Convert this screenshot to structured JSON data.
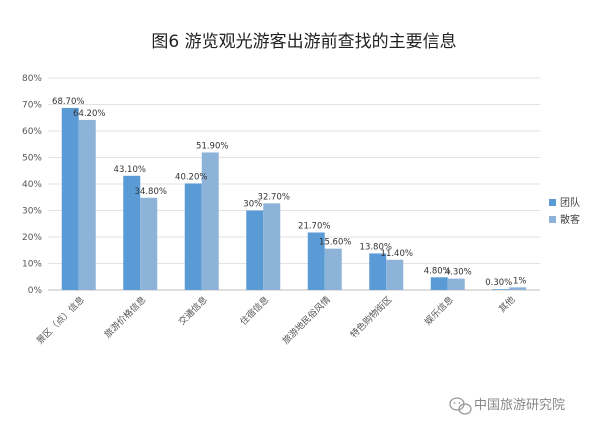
{
  "chart_data": {
    "type": "bar",
    "title": "图6 游览观光游客出游前查找的主要信息",
    "categories": [
      "景区（点）信息",
      "旅游价格信息",
      "交通信息",
      "住宿信息",
      "旅游地民俗风情",
      "特色购物街区",
      "娱乐信息",
      "其他"
    ],
    "series": [
      {
        "name": "团队",
        "values": [
          68.7,
          43.1,
          40.2,
          30,
          21.7,
          13.8,
          4.8,
          0.3
        ],
        "labels": [
          "68.70%",
          "43.10%",
          "40.20%",
          "30%",
          "21.70%",
          "13.80%",
          "4.80%",
          "0.30%"
        ],
        "color": "#5b9bd5"
      },
      {
        "name": "散客",
        "values": [
          64.2,
          34.8,
          51.9,
          32.7,
          15.6,
          11.4,
          4.3,
          1
        ],
        "labels": [
          "64.20%",
          "34.80%",
          "51.90%",
          "32.70%",
          "15.60%",
          "11.40%",
          "4.30%",
          "1%"
        ],
        "color": "#8db3d9"
      }
    ],
    "ylim": [
      0,
      80
    ],
    "yticks": [
      "0%",
      "10%",
      "20%",
      "30%",
      "40%",
      "50%",
      "60%",
      "70%",
      "80%"
    ],
    "grid": true,
    "legend": "right"
  },
  "watermark": {
    "text": "中国旅游研究院",
    "icon": "wechat-icon"
  }
}
